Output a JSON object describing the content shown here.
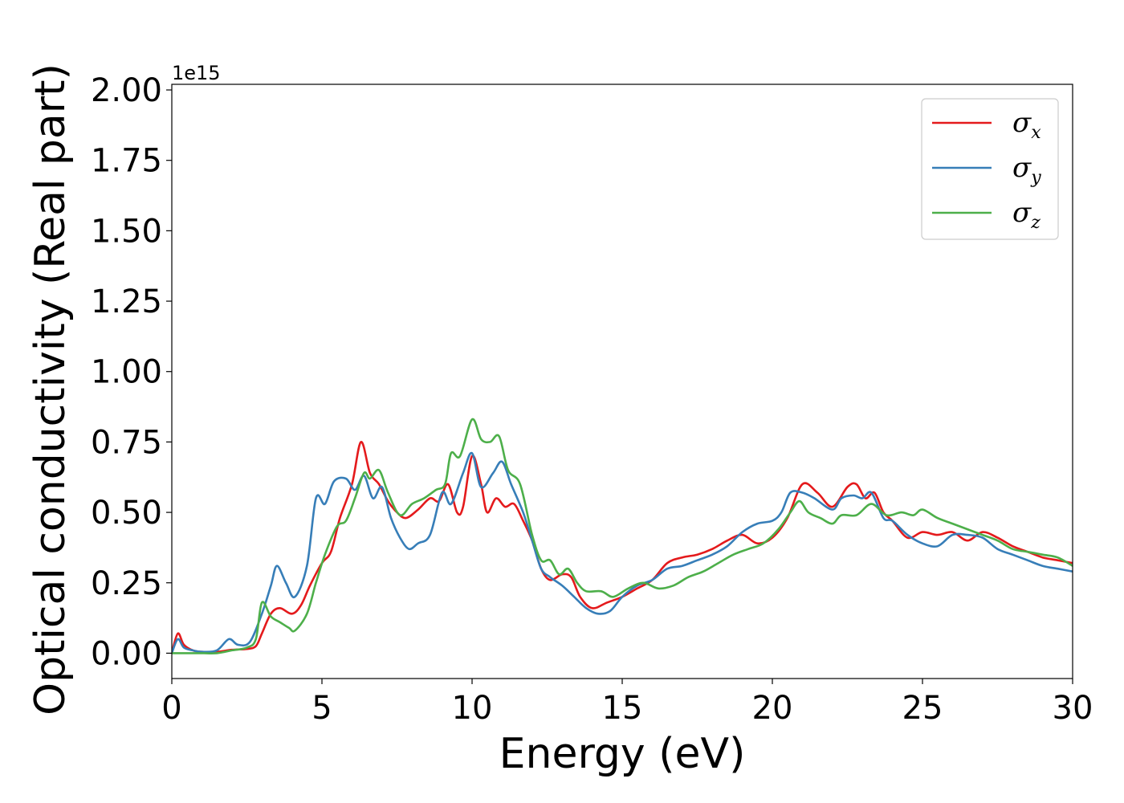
{
  "chart_data": {
    "type": "line",
    "title": "",
    "xlabel": "Energy (eV)",
    "ylabel": "Optical conductivity (Real part)",
    "y_offset_label": "1e15",
    "xlim": [
      0,
      30
    ],
    "ylim": [
      -0.09,
      2.02
    ],
    "x_ticks": [
      0,
      5,
      10,
      15,
      20,
      25,
      30
    ],
    "x_tick_labels": [
      "0",
      "5",
      "10",
      "15",
      "20",
      "25",
      "30"
    ],
    "y_ticks": [
      0.0,
      0.25,
      0.5,
      0.75,
      1.0,
      1.25,
      1.5,
      1.75,
      2.0
    ],
    "y_tick_labels": [
      "0.00",
      "0.25",
      "0.50",
      "0.75",
      "1.00",
      "1.25",
      "1.50",
      "1.75",
      "2.00"
    ],
    "grid": false,
    "legend_position": "upper right",
    "series": [
      {
        "name": "σx",
        "symbol": "σ",
        "subscript": "x",
        "color": "#e41a1c",
        "points": [
          [
            0,
            0.0
          ],
          [
            0.2,
            0.07
          ],
          [
            0.4,
            0.03
          ],
          [
            0.7,
            0.01
          ],
          [
            1.0,
            0.005
          ],
          [
            1.5,
            0.005
          ],
          [
            2.0,
            0.012
          ],
          [
            2.5,
            0.015
          ],
          [
            2.8,
            0.025
          ],
          [
            3.0,
            0.07
          ],
          [
            3.3,
            0.14
          ],
          [
            3.6,
            0.16
          ],
          [
            4.0,
            0.14
          ],
          [
            4.3,
            0.17
          ],
          [
            4.6,
            0.24
          ],
          [
            5.0,
            0.32
          ],
          [
            5.3,
            0.36
          ],
          [
            5.6,
            0.48
          ],
          [
            6.0,
            0.6
          ],
          [
            6.3,
            0.75
          ],
          [
            6.6,
            0.64
          ],
          [
            6.9,
            0.6
          ],
          [
            7.2,
            0.54
          ],
          [
            7.5,
            0.5
          ],
          [
            7.8,
            0.48
          ],
          [
            8.2,
            0.51
          ],
          [
            8.6,
            0.55
          ],
          [
            8.9,
            0.54
          ],
          [
            9.2,
            0.6
          ],
          [
            9.5,
            0.5
          ],
          [
            9.7,
            0.52
          ],
          [
            10.0,
            0.7
          ],
          [
            10.3,
            0.6
          ],
          [
            10.5,
            0.5
          ],
          [
            10.8,
            0.55
          ],
          [
            11.1,
            0.52
          ],
          [
            11.4,
            0.53
          ],
          [
            11.7,
            0.47
          ],
          [
            12.0,
            0.4
          ],
          [
            12.3,
            0.3
          ],
          [
            12.6,
            0.26
          ],
          [
            13.0,
            0.28
          ],
          [
            13.3,
            0.27
          ],
          [
            13.6,
            0.2
          ],
          [
            14.0,
            0.16
          ],
          [
            14.5,
            0.18
          ],
          [
            15.0,
            0.2
          ],
          [
            15.5,
            0.23
          ],
          [
            16.0,
            0.26
          ],
          [
            16.5,
            0.32
          ],
          [
            17.0,
            0.34
          ],
          [
            17.5,
            0.35
          ],
          [
            18.0,
            0.37
          ],
          [
            18.5,
            0.4
          ],
          [
            19.0,
            0.42
          ],
          [
            19.5,
            0.39
          ],
          [
            20.0,
            0.41
          ],
          [
            20.5,
            0.48
          ],
          [
            21.0,
            0.6
          ],
          [
            21.5,
            0.57
          ],
          [
            22.0,
            0.52
          ],
          [
            22.5,
            0.59
          ],
          [
            22.8,
            0.6
          ],
          [
            23.1,
            0.55
          ],
          [
            23.4,
            0.57
          ],
          [
            23.7,
            0.5
          ],
          [
            24.0,
            0.47
          ],
          [
            24.5,
            0.41
          ],
          [
            25.0,
            0.43
          ],
          [
            25.5,
            0.42
          ],
          [
            26.0,
            0.43
          ],
          [
            26.5,
            0.4
          ],
          [
            27.0,
            0.43
          ],
          [
            27.5,
            0.41
          ],
          [
            28.0,
            0.38
          ],
          [
            28.5,
            0.36
          ],
          [
            29.0,
            0.34
          ],
          [
            29.5,
            0.33
          ],
          [
            30.0,
            0.32
          ]
        ]
      },
      {
        "name": "σy",
        "symbol": "σ",
        "subscript": "y",
        "color": "#377eb8",
        "points": [
          [
            0,
            0.0
          ],
          [
            0.2,
            0.05
          ],
          [
            0.4,
            0.02
          ],
          [
            0.7,
            0.01
          ],
          [
            1.0,
            0.005
          ],
          [
            1.5,
            0.01
          ],
          [
            1.9,
            0.05
          ],
          [
            2.2,
            0.03
          ],
          [
            2.6,
            0.04
          ],
          [
            3.0,
            0.14
          ],
          [
            3.3,
            0.24
          ],
          [
            3.5,
            0.31
          ],
          [
            3.8,
            0.25
          ],
          [
            4.1,
            0.2
          ],
          [
            4.5,
            0.31
          ],
          [
            4.8,
            0.55
          ],
          [
            5.1,
            0.53
          ],
          [
            5.4,
            0.61
          ],
          [
            5.8,
            0.62
          ],
          [
            6.1,
            0.58
          ],
          [
            6.4,
            0.63
          ],
          [
            6.7,
            0.55
          ],
          [
            7.0,
            0.59
          ],
          [
            7.3,
            0.48
          ],
          [
            7.6,
            0.41
          ],
          [
            7.9,
            0.37
          ],
          [
            8.2,
            0.39
          ],
          [
            8.6,
            0.42
          ],
          [
            9.0,
            0.57
          ],
          [
            9.3,
            0.53
          ],
          [
            9.7,
            0.64
          ],
          [
            10.0,
            0.71
          ],
          [
            10.3,
            0.59
          ],
          [
            10.7,
            0.64
          ],
          [
            11.0,
            0.68
          ],
          [
            11.3,
            0.6
          ],
          [
            11.7,
            0.5
          ],
          [
            12.0,
            0.4
          ],
          [
            12.3,
            0.3
          ],
          [
            12.6,
            0.27
          ],
          [
            13.0,
            0.24
          ],
          [
            13.4,
            0.2
          ],
          [
            13.8,
            0.16
          ],
          [
            14.2,
            0.14
          ],
          [
            14.6,
            0.15
          ],
          [
            15.0,
            0.2
          ],
          [
            15.5,
            0.24
          ],
          [
            16.0,
            0.26
          ],
          [
            16.5,
            0.3
          ],
          [
            17.0,
            0.31
          ],
          [
            17.5,
            0.33
          ],
          [
            18.0,
            0.35
          ],
          [
            18.5,
            0.38
          ],
          [
            19.0,
            0.43
          ],
          [
            19.5,
            0.46
          ],
          [
            20.0,
            0.47
          ],
          [
            20.3,
            0.5
          ],
          [
            20.6,
            0.57
          ],
          [
            21.0,
            0.57
          ],
          [
            21.4,
            0.55
          ],
          [
            22.0,
            0.51
          ],
          [
            22.3,
            0.55
          ],
          [
            22.7,
            0.56
          ],
          [
            23.0,
            0.55
          ],
          [
            23.3,
            0.57
          ],
          [
            23.7,
            0.48
          ],
          [
            24.0,
            0.47
          ],
          [
            24.5,
            0.42
          ],
          [
            25.0,
            0.39
          ],
          [
            25.5,
            0.38
          ],
          [
            26.0,
            0.42
          ],
          [
            26.5,
            0.42
          ],
          [
            27.0,
            0.41
          ],
          [
            27.5,
            0.37
          ],
          [
            28.0,
            0.35
          ],
          [
            28.5,
            0.33
          ],
          [
            29.0,
            0.31
          ],
          [
            29.5,
            0.3
          ],
          [
            30.0,
            0.29
          ]
        ]
      },
      {
        "name": "σz",
        "symbol": "σ",
        "subscript": "z",
        "color": "#4daf4a",
        "points": [
          [
            0,
            0.0
          ],
          [
            0.5,
            0.0
          ],
          [
            1.0,
            0.0
          ],
          [
            1.5,
            0.0
          ],
          [
            2.0,
            0.01
          ],
          [
            2.5,
            0.02
          ],
          [
            2.8,
            0.05
          ],
          [
            3.0,
            0.18
          ],
          [
            3.3,
            0.13
          ],
          [
            3.6,
            0.11
          ],
          [
            3.9,
            0.09
          ],
          [
            4.1,
            0.08
          ],
          [
            4.5,
            0.14
          ],
          [
            4.8,
            0.25
          ],
          [
            5.1,
            0.35
          ],
          [
            5.5,
            0.45
          ],
          [
            5.8,
            0.47
          ],
          [
            6.1,
            0.55
          ],
          [
            6.4,
            0.64
          ],
          [
            6.6,
            0.62
          ],
          [
            6.9,
            0.65
          ],
          [
            7.2,
            0.57
          ],
          [
            7.6,
            0.49
          ],
          [
            8.0,
            0.53
          ],
          [
            8.4,
            0.55
          ],
          [
            8.8,
            0.58
          ],
          [
            9.1,
            0.6
          ],
          [
            9.3,
            0.71
          ],
          [
            9.6,
            0.7
          ],
          [
            10.0,
            0.83
          ],
          [
            10.3,
            0.76
          ],
          [
            10.6,
            0.75
          ],
          [
            10.9,
            0.77
          ],
          [
            11.2,
            0.65
          ],
          [
            11.6,
            0.6
          ],
          [
            12.0,
            0.42
          ],
          [
            12.3,
            0.33
          ],
          [
            12.6,
            0.33
          ],
          [
            12.9,
            0.28
          ],
          [
            13.2,
            0.3
          ],
          [
            13.5,
            0.25
          ],
          [
            13.8,
            0.22
          ],
          [
            14.3,
            0.22
          ],
          [
            14.7,
            0.2
          ],
          [
            15.2,
            0.23
          ],
          [
            15.7,
            0.25
          ],
          [
            16.2,
            0.23
          ],
          [
            16.7,
            0.24
          ],
          [
            17.2,
            0.27
          ],
          [
            17.7,
            0.29
          ],
          [
            18.2,
            0.32
          ],
          [
            18.7,
            0.35
          ],
          [
            19.2,
            0.37
          ],
          [
            19.7,
            0.39
          ],
          [
            20.2,
            0.44
          ],
          [
            20.6,
            0.5
          ],
          [
            20.9,
            0.54
          ],
          [
            21.2,
            0.5
          ],
          [
            21.6,
            0.48
          ],
          [
            22.0,
            0.46
          ],
          [
            22.3,
            0.49
          ],
          [
            22.8,
            0.49
          ],
          [
            23.3,
            0.53
          ],
          [
            23.8,
            0.49
          ],
          [
            24.3,
            0.5
          ],
          [
            24.7,
            0.49
          ],
          [
            25.0,
            0.51
          ],
          [
            25.5,
            0.48
          ],
          [
            26.0,
            0.46
          ],
          [
            26.5,
            0.44
          ],
          [
            27.0,
            0.42
          ],
          [
            27.5,
            0.4
          ],
          [
            28.0,
            0.37
          ],
          [
            28.5,
            0.36
          ],
          [
            29.0,
            0.35
          ],
          [
            29.5,
            0.34
          ],
          [
            30.0,
            0.31
          ]
        ]
      }
    ]
  }
}
